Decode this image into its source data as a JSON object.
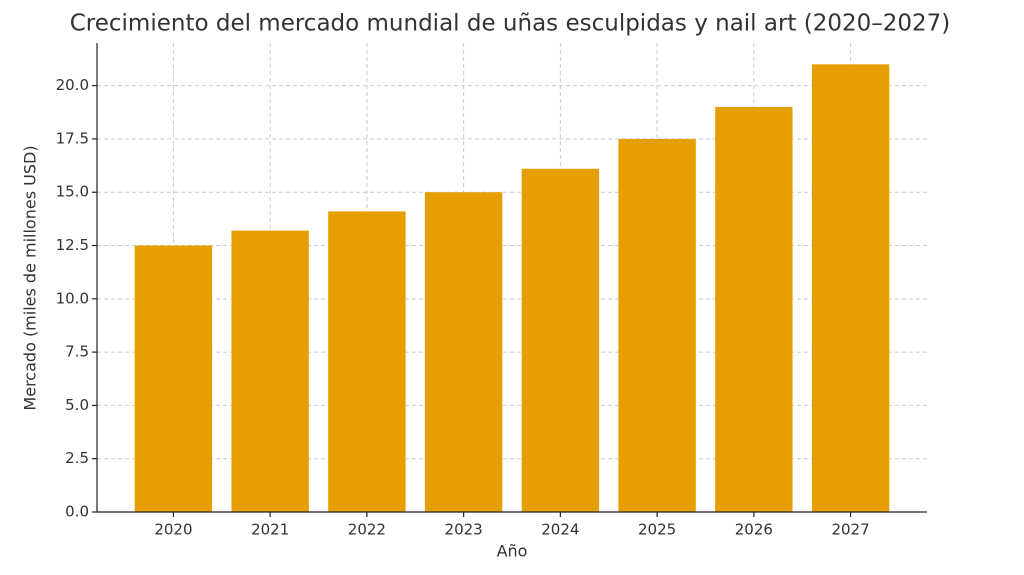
{
  "chart_data": {
    "type": "bar",
    "title": "Crecimiento del mercado mundial de uñas esculpidas y nail art (2020–2027)",
    "x_label": "Año",
    "y_label": "Mercado (miles de millones USD)",
    "categories": [
      "2020",
      "2021",
      "2022",
      "2023",
      "2024",
      "2025",
      "2026",
      "2027"
    ],
    "values": [
      12.5,
      13.2,
      14.1,
      15.0,
      16.1,
      17.5,
      19.0,
      21.0
    ],
    "color": "#e69f00",
    "ylim": [
      0,
      22
    ],
    "yticks": [
      {
        "value": 0,
        "label": "0.0"
      },
      {
        "value": 2.5,
        "label": "2.5"
      },
      {
        "value": 5,
        "label": "5.0"
      },
      {
        "value": 7.5,
        "label": "7.5"
      },
      {
        "value": 10,
        "label": "10.0"
      },
      {
        "value": 12.5,
        "label": "12.5"
      },
      {
        "value": 15,
        "label": "15.0"
      },
      {
        "value": 17.5,
        "label": "17.5"
      },
      {
        "value": 20,
        "label": "20.0"
      }
    ],
    "grid": true
  }
}
